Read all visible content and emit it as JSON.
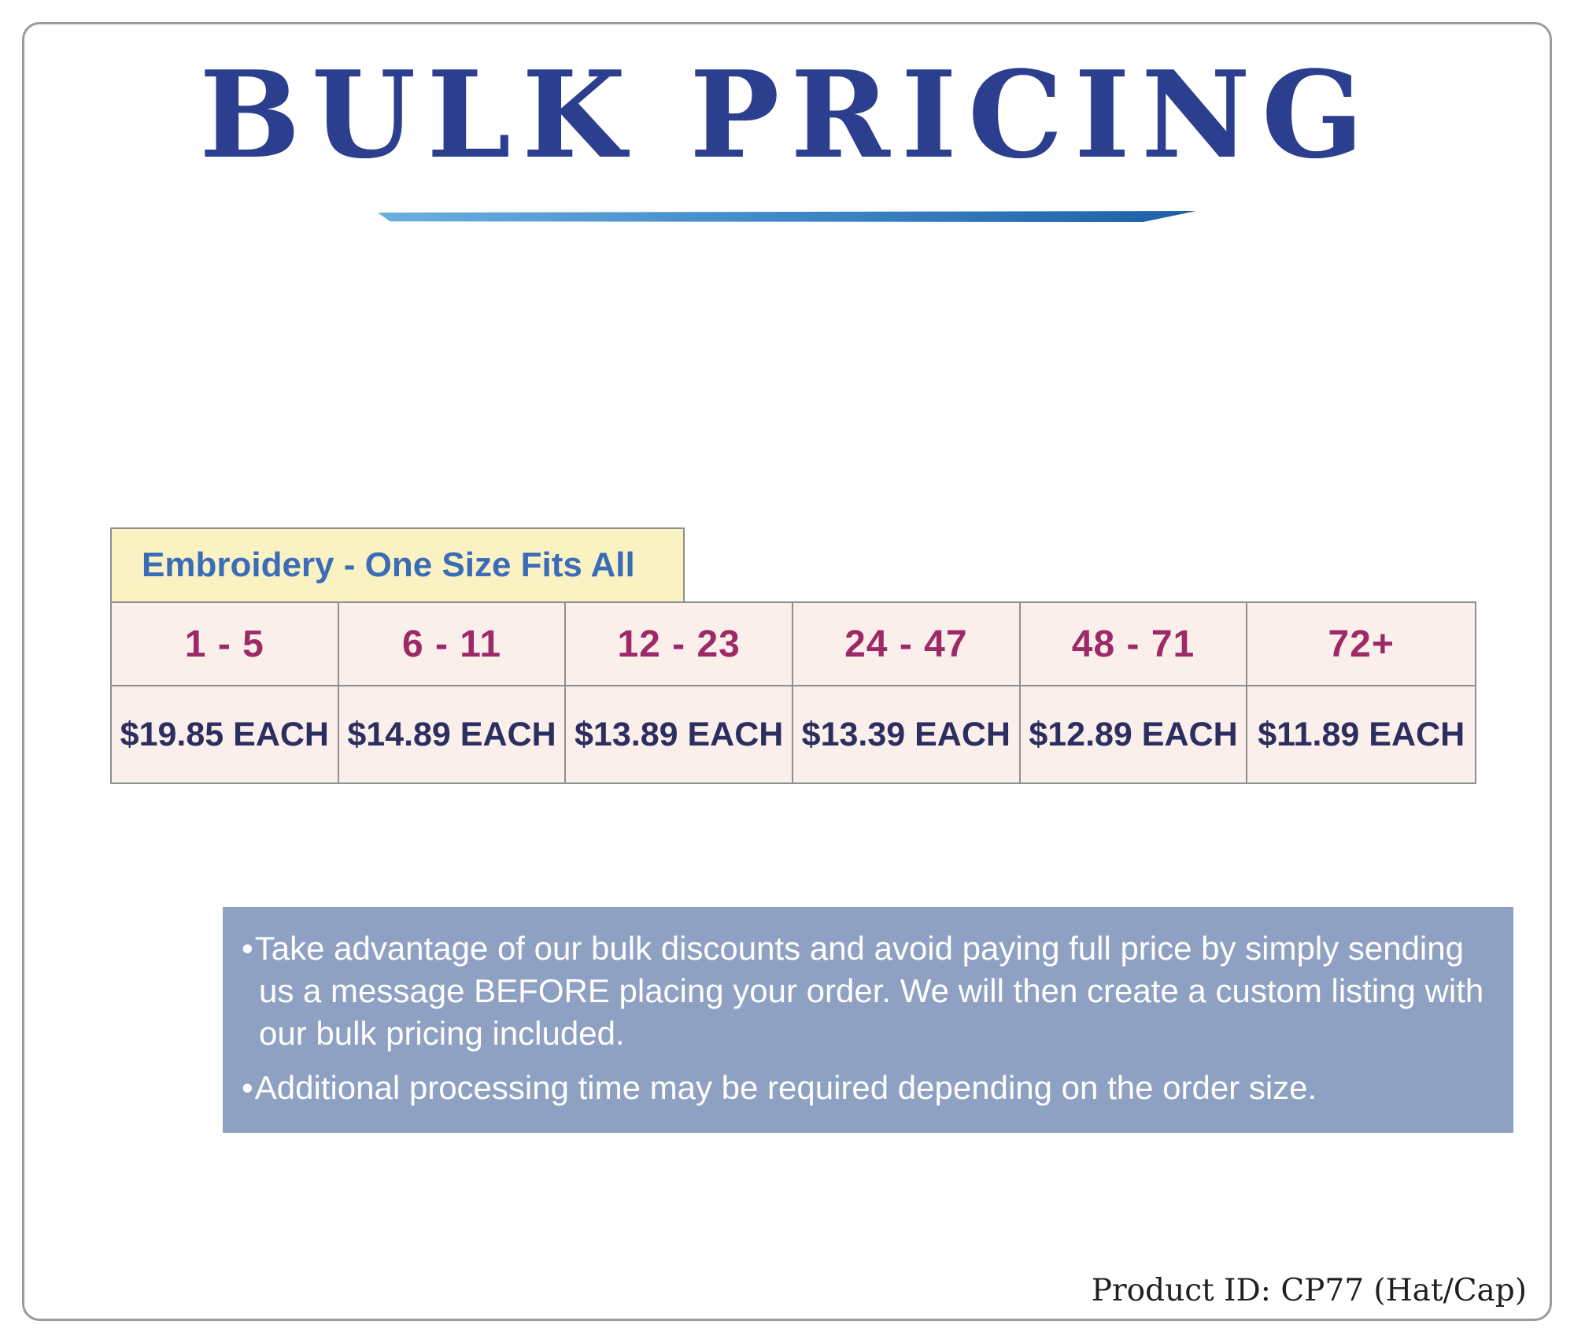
{
  "header": {
    "title": "BULK PRICING"
  },
  "table": {
    "header": "Embroidery - One Size Fits All",
    "columns": [
      {
        "range": "1 - 5",
        "price": "$19.85 EACH"
      },
      {
        "range": "6 - 11",
        "price": "$14.89 EACH"
      },
      {
        "range": "12 - 23",
        "price": "$13.89 EACH"
      },
      {
        "range": "24 - 47",
        "price": "$13.39 EACH"
      },
      {
        "range": "48 - 71",
        "price": "$12.89 EACH"
      },
      {
        "range": "72+",
        "price": "$11.89 EACH"
      }
    ]
  },
  "notes": {
    "bullet": "•",
    "items": [
      "Take advantage of our bulk discounts and avoid paying full price by simply sending us a message BEFORE placing your order. We will then create a custom listing with our bulk pricing included.",
      "Additional processing time may be required depending on the order size."
    ]
  },
  "footer": {
    "product_id": "Product ID: CP77 (Hat/Cap)"
  },
  "colors": {
    "title_blue": "#2b3f8e",
    "underline_gradient_start": "#6ab0de",
    "underline_gradient_end": "#1d5fa6",
    "table_header_bg": "#fbf2c3",
    "table_header_text": "#3a6cb8",
    "row_bg": "#fbefec",
    "range_text": "#9d2a67",
    "price_text": "#2b2e5e",
    "notes_bg": "#8fa1c3",
    "border_gray": "#8f8f8f"
  }
}
